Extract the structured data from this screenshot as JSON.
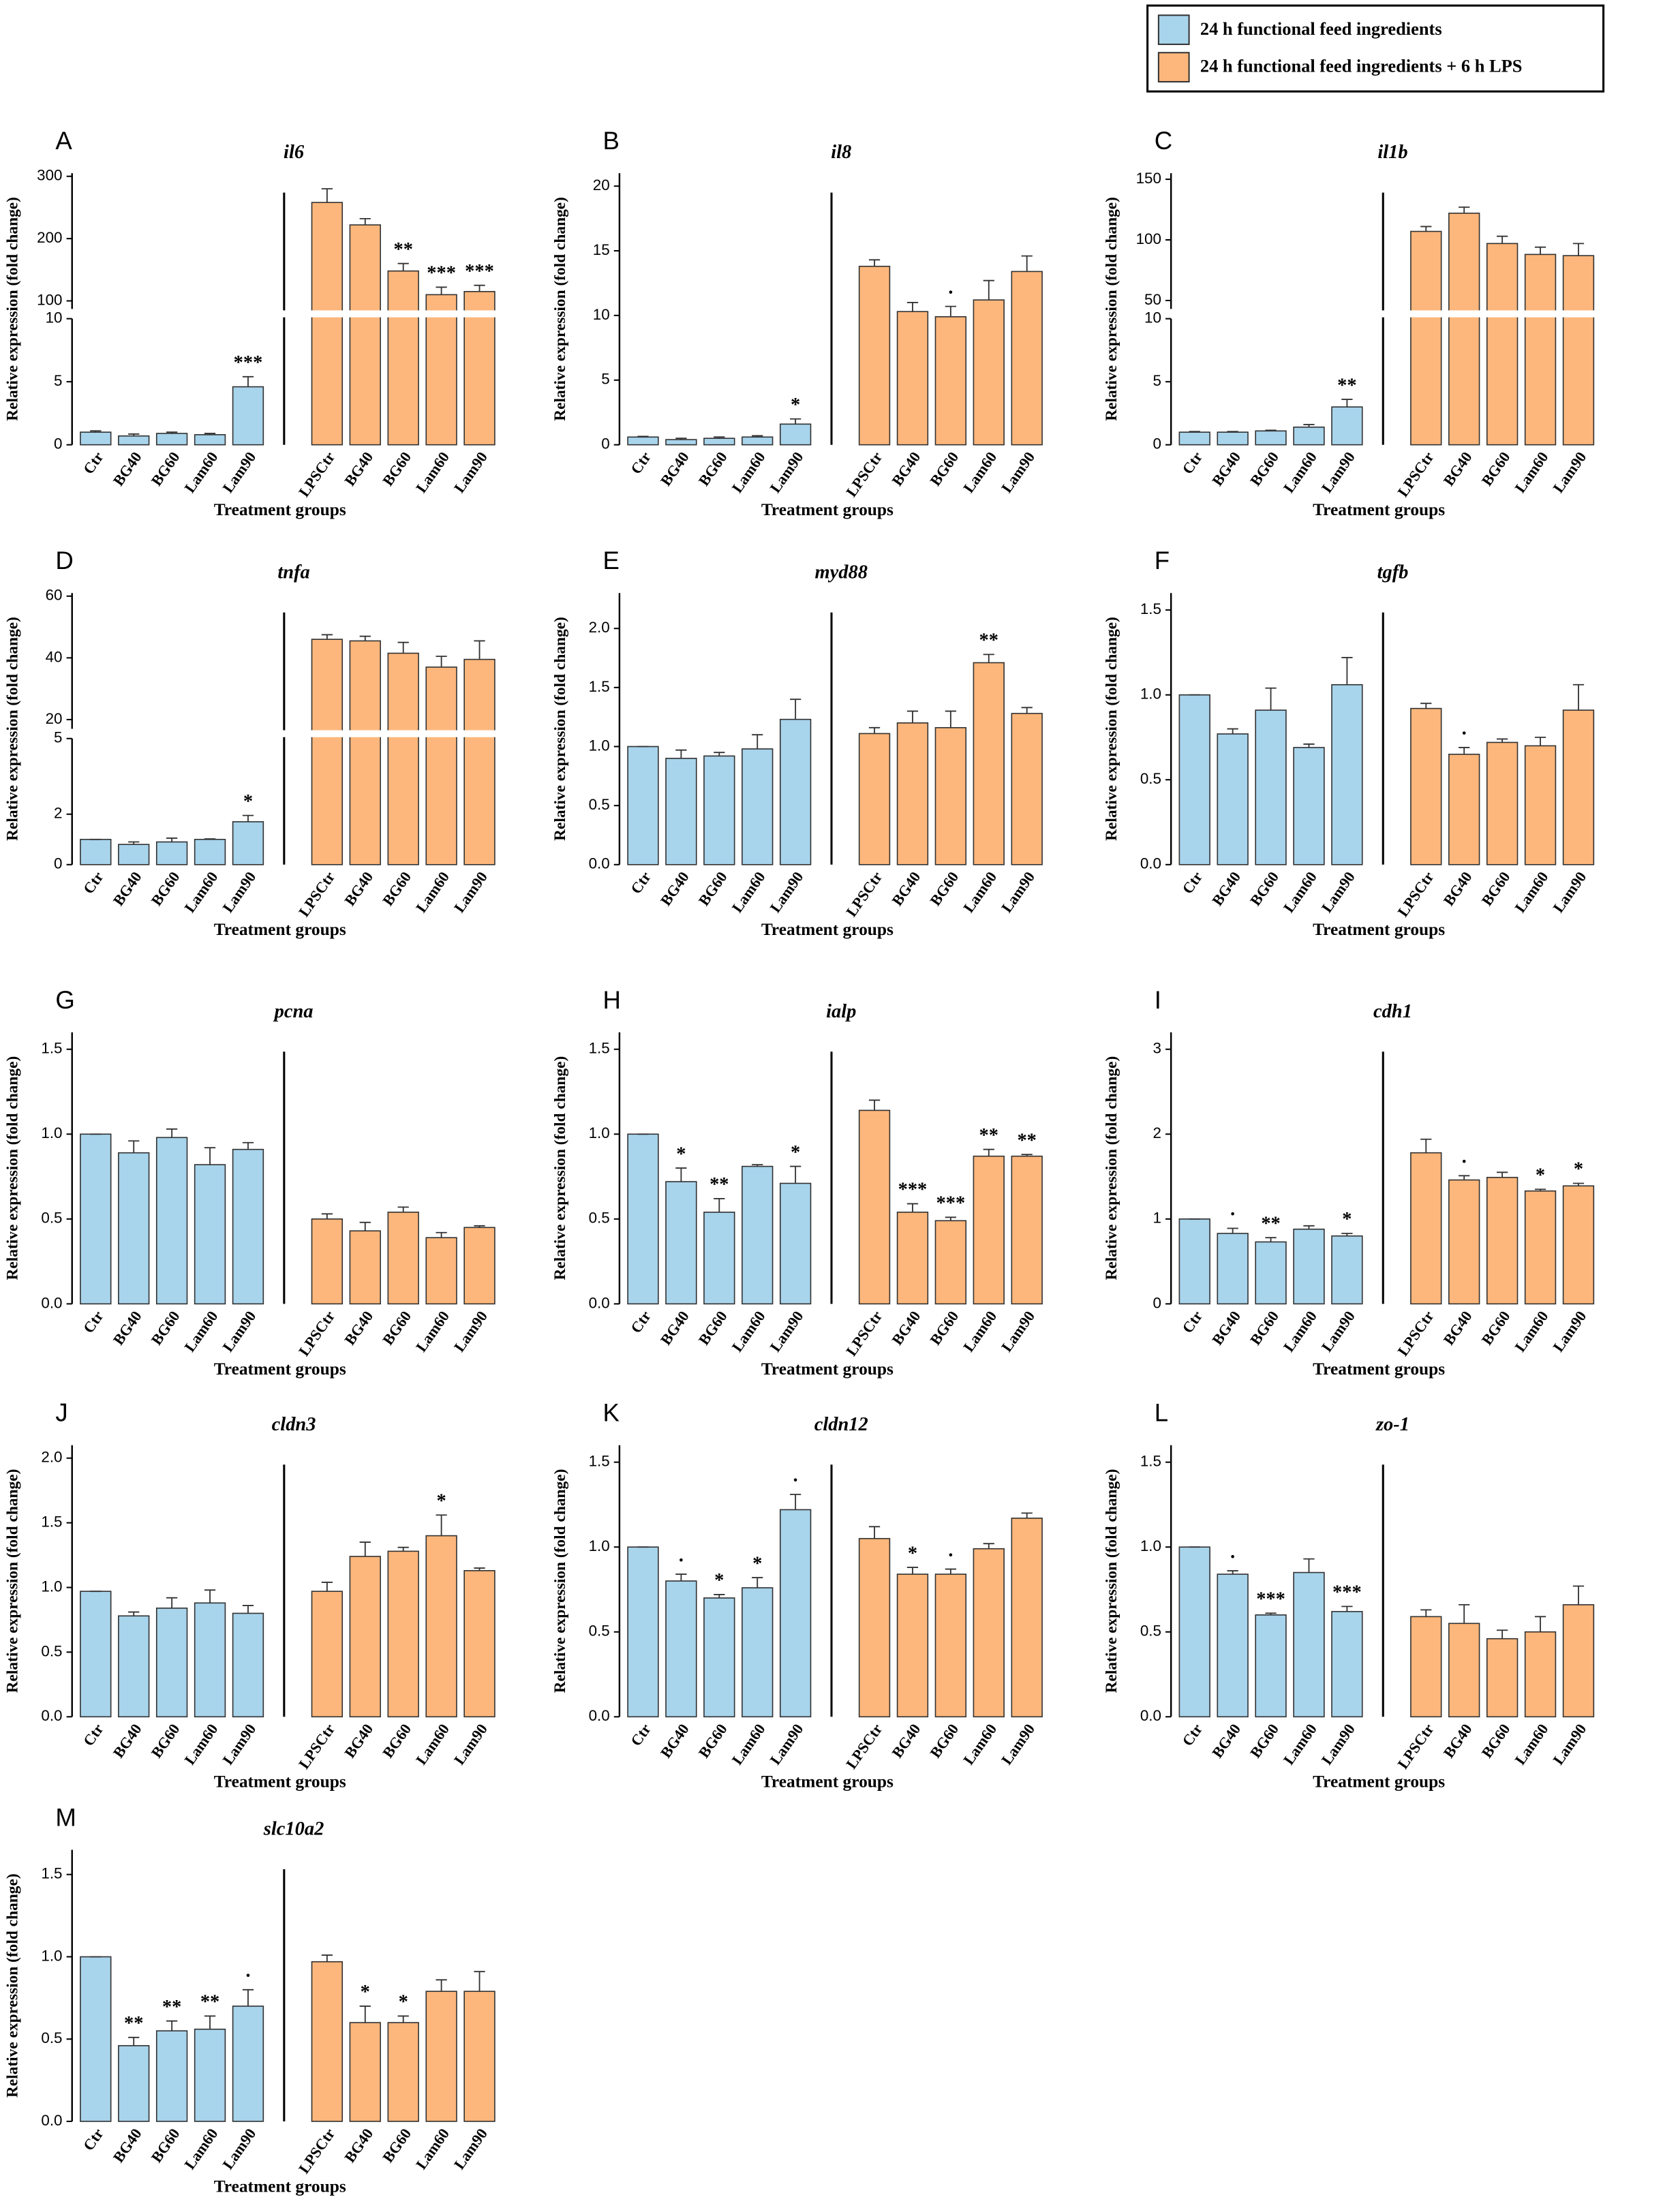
{
  "legend": [
    {
      "name": "24 h functional feed ingredients",
      "color": "#a8d4ec"
    },
    {
      "name": "24 h functional feed ingredients + 6 h LPS",
      "color": "#fdb77c"
    }
  ],
  "chart_data": [
    {
      "type": "bar",
      "panel": "A",
      "title": "il6",
      "ylabel": "Relative expression (fold change)",
      "xlabel": "Treatment groups",
      "ylim": [
        0,
        10
      ],
      "yticks": [
        0,
        5,
        10
      ],
      "ylim_upper": [
        87,
        305
      ],
      "yticks_upper": [
        100,
        200,
        300
      ],
      "groups": [
        {
          "categories": [
            "Ctr",
            "BG40",
            "BG60",
            "Lam60",
            "Lam90"
          ],
          "values": [
            1.0,
            0.7,
            0.9,
            0.8,
            4.6
          ],
          "errors": [
            0.1,
            0.15,
            0.1,
            0.1,
            0.8
          ],
          "annotations": [
            null,
            null,
            null,
            null,
            "***"
          ]
        },
        {
          "categories": [
            "LPSCtr",
            "BG40",
            "BG60",
            "Lam60",
            "Lam90"
          ],
          "values": [
            258,
            222,
            148,
            110,
            115
          ],
          "errors": [
            22,
            10,
            12,
            12,
            10
          ],
          "annotations": [
            null,
            null,
            "**",
            "***",
            "***"
          ]
        }
      ]
    },
    {
      "type": "bar",
      "panel": "B",
      "title": "il8",
      "ylabel": "Relative expression (fold change)",
      "xlabel": "Treatment groups",
      "ylim": [
        0,
        21
      ],
      "yticks": [
        0,
        5,
        10,
        15,
        20
      ],
      "groups": [
        {
          "categories": [
            "Ctr",
            "BG40",
            "BG60",
            "Lam60",
            "Lam90"
          ],
          "values": [
            0.6,
            0.4,
            0.5,
            0.6,
            1.6
          ],
          "errors": [
            0.05,
            0.1,
            0.1,
            0.1,
            0.4
          ],
          "annotations": [
            null,
            null,
            null,
            null,
            "*"
          ]
        },
        {
          "categories": [
            "LPSCtr",
            "BG40",
            "BG60",
            "Lam60",
            "Lam90"
          ],
          "values": [
            13.8,
            10.3,
            9.9,
            11.2,
            13.4
          ],
          "errors": [
            0.5,
            0.7,
            0.8,
            1.5,
            1.2
          ],
          "annotations": [
            null,
            null,
            "·",
            null,
            null
          ]
        }
      ]
    },
    {
      "type": "bar",
      "panel": "C",
      "title": "il1b",
      "ylabel": "Relative expression (fold change)",
      "xlabel": "Treatment groups",
      "ylim": [
        0,
        10
      ],
      "yticks": [
        0,
        5,
        10
      ],
      "ylim_upper": [
        43,
        155
      ],
      "yticks_upper": [
        50,
        100,
        150
      ],
      "groups": [
        {
          "categories": [
            "Ctr",
            "BG40",
            "BG60",
            "Lam60",
            "Lam90"
          ],
          "values": [
            1.0,
            1.0,
            1.1,
            1.4,
            3.0
          ],
          "errors": [
            0.05,
            0.05,
            0.05,
            0.2,
            0.6
          ],
          "annotations": [
            null,
            null,
            null,
            null,
            "**"
          ]
        },
        {
          "categories": [
            "LPSCtr",
            "BG40",
            "BG60",
            "Lam60",
            "Lam90"
          ],
          "values": [
            107,
            122,
            97,
            88,
            87
          ],
          "errors": [
            4,
            5,
            6,
            6,
            10
          ],
          "annotations": [
            null,
            null,
            null,
            null,
            null
          ]
        }
      ]
    },
    {
      "type": "bar",
      "panel": "D",
      "title": "tnfa",
      "ylabel": "Relative expression (fold change)",
      "xlabel": "Treatment groups",
      "ylim": [
        0,
        5
      ],
      "yticks": [
        0,
        2,
        5
      ],
      "ylim_upper": [
        17,
        61
      ],
      "yticks_upper": [
        20,
        40,
        60
      ],
      "groups": [
        {
          "categories": [
            "Ctr",
            "BG40",
            "BG60",
            "Lam60",
            "Lam90"
          ],
          "values": [
            1.0,
            0.8,
            0.9,
            1.0,
            1.7
          ],
          "errors": [
            0,
            0.1,
            0.15,
            0.02,
            0.25
          ],
          "annotations": [
            null,
            null,
            null,
            null,
            "*"
          ]
        },
        {
          "categories": [
            "LPSCtr",
            "BG40",
            "BG60",
            "Lam60",
            "Lam90"
          ],
          "values": [
            46,
            45.5,
            41.5,
            37,
            39.5
          ],
          "errors": [
            1.5,
            1.5,
            3.5,
            3.5,
            6
          ],
          "annotations": [
            null,
            null,
            null,
            null,
            null
          ]
        }
      ]
    },
    {
      "type": "bar",
      "panel": "E",
      "title": "myd88",
      "ylabel": "Relative expression (fold change)",
      "xlabel": "Treatment groups",
      "ylim": [
        0,
        2.3
      ],
      "yticks": [
        {
          "value": 0,
          "label": "0.0"
        },
        0.5,
        {
          "value": 1,
          "label": "1.0"
        },
        1.5,
        {
          "value": 2,
          "label": "2.0"
        }
      ],
      "groups": [
        {
          "categories": [
            "Ctr",
            "BG40",
            "BG60",
            "Lam60",
            "Lam90"
          ],
          "values": [
            1.0,
            0.9,
            0.92,
            0.98,
            1.23
          ],
          "errors": [
            0,
            0.07,
            0.03,
            0.12,
            0.17
          ],
          "annotations": [
            null,
            null,
            null,
            null,
            null
          ]
        },
        {
          "categories": [
            "LPSCtr",
            "BG40",
            "BG60",
            "Lam60",
            "Lam90"
          ],
          "values": [
            1.11,
            1.2,
            1.16,
            1.71,
            1.28
          ],
          "errors": [
            0.05,
            0.1,
            0.14,
            0.07,
            0.05
          ],
          "annotations": [
            null,
            null,
            null,
            "**",
            null
          ]
        }
      ]
    },
    {
      "type": "bar",
      "panel": "F",
      "title": "tgfb",
      "ylabel": "Relative expression (fold change)",
      "xlabel": "Treatment groups",
      "ylim": [
        0,
        1.6
      ],
      "yticks": [
        {
          "value": 0,
          "label": "0.0"
        },
        0.5,
        {
          "value": 1,
          "label": "1.0"
        },
        1.5
      ],
      "groups": [
        {
          "categories": [
            "Ctr",
            "BG40",
            "BG60",
            "Lam60",
            "Lam90"
          ],
          "values": [
            1.0,
            0.77,
            0.91,
            0.69,
            1.06
          ],
          "errors": [
            0,
            0.03,
            0.13,
            0.02,
            0.16
          ],
          "annotations": [
            null,
            null,
            null,
            null,
            null
          ]
        },
        {
          "categories": [
            "LPSCtr",
            "BG40",
            "BG60",
            "Lam60",
            "Lam90"
          ],
          "values": [
            0.92,
            0.65,
            0.72,
            0.7,
            0.91
          ],
          "errors": [
            0.03,
            0.04,
            0.02,
            0.05,
            0.15
          ],
          "annotations": [
            null,
            "·",
            null,
            null,
            null
          ]
        }
      ]
    },
    {
      "type": "bar",
      "panel": "G",
      "title": "pcna",
      "ylabel": "Relative expression (fold change)",
      "xlabel": "Treatment groups",
      "ylim": [
        0,
        1.6
      ],
      "yticks": [
        {
          "value": 0,
          "label": "0.0"
        },
        0.5,
        {
          "value": 1,
          "label": "1.0"
        },
        1.5
      ],
      "groups": [
        {
          "categories": [
            "Ctr",
            "BG40",
            "BG60",
            "Lam60",
            "Lam90"
          ],
          "values": [
            1.0,
            0.89,
            0.98,
            0.82,
            0.91
          ],
          "errors": [
            0,
            0.07,
            0.05,
            0.1,
            0.04
          ],
          "annotations": [
            null,
            null,
            null,
            null,
            null
          ]
        },
        {
          "categories": [
            "LPSCtr",
            "BG40",
            "BG60",
            "Lam60",
            "Lam90"
          ],
          "values": [
            0.5,
            0.43,
            0.54,
            0.39,
            0.45
          ],
          "errors": [
            0.03,
            0.05,
            0.03,
            0.03,
            0.01
          ],
          "annotations": [
            null,
            null,
            null,
            null,
            null
          ]
        }
      ]
    },
    {
      "type": "bar",
      "panel": "H",
      "title": "ialp",
      "ylabel": "Relative expression (fold change)",
      "xlabel": "Treatment groups",
      "ylim": [
        0,
        1.6
      ],
      "yticks": [
        {
          "value": 0,
          "label": "0.0"
        },
        0.5,
        {
          "value": 1,
          "label": "1.0"
        },
        1.5
      ],
      "groups": [
        {
          "categories": [
            "Ctr",
            "BG40",
            "BG60",
            "Lam60",
            "Lam90"
          ],
          "values": [
            1.0,
            0.72,
            0.54,
            0.81,
            0.71
          ],
          "errors": [
            0,
            0.08,
            0.08,
            0.01,
            0.1
          ],
          "annotations": [
            null,
            "*",
            "**",
            null,
            "*"
          ]
        },
        {
          "categories": [
            "LPSCtr",
            "BG40",
            "BG60",
            "Lam60",
            "Lam90"
          ],
          "values": [
            1.14,
            0.54,
            0.49,
            0.87,
            0.87
          ],
          "errors": [
            0.06,
            0.05,
            0.02,
            0.04,
            0.01
          ],
          "annotations": [
            null,
            "***",
            "***",
            "**",
            "**"
          ]
        }
      ]
    },
    {
      "type": "bar",
      "panel": "I",
      "title": "cdh1",
      "ylabel": "Relative expression (fold change)",
      "xlabel": "Treatment groups",
      "ylim": [
        0,
        3.2
      ],
      "yticks": [
        0,
        1,
        2,
        3
      ],
      "groups": [
        {
          "categories": [
            "Ctr",
            "BG40",
            "BG60",
            "Lam60",
            "Lam90"
          ],
          "values": [
            1.0,
            0.83,
            0.73,
            0.88,
            0.8
          ],
          "errors": [
            0,
            0.06,
            0.05,
            0.04,
            0.03
          ],
          "annotations": [
            null,
            "·",
            "**",
            null,
            "*"
          ]
        },
        {
          "categories": [
            "LPSCtr",
            "BG40",
            "BG60",
            "Lam60",
            "Lam90"
          ],
          "values": [
            1.78,
            1.46,
            1.49,
            1.33,
            1.39
          ],
          "errors": [
            0.16,
            0.05,
            0.06,
            0.02,
            0.03
          ],
          "annotations": [
            null,
            "·",
            null,
            "*",
            "*"
          ]
        }
      ]
    },
    {
      "type": "bar",
      "panel": "J",
      "title": "cldn3",
      "ylabel": "Relative expression (fold change)",
      "xlabel": "Treatment groups",
      "ylim": [
        0,
        2.1
      ],
      "yticks": [
        {
          "value": 0,
          "label": "0.0"
        },
        0.5,
        {
          "value": 1,
          "label": "1.0"
        },
        1.5,
        {
          "value": 2,
          "label": "2.0"
        }
      ],
      "groups": [
        {
          "categories": [
            "Ctr",
            "BG40",
            "BG60",
            "Lam60",
            "Lam90"
          ],
          "values": [
            0.97,
            0.78,
            0.84,
            0.88,
            0.8
          ],
          "errors": [
            0,
            0.03,
            0.08,
            0.1,
            0.06
          ],
          "annotations": [
            null,
            null,
            null,
            null,
            null
          ]
        },
        {
          "categories": [
            "LPSCtr",
            "BG40",
            "BG60",
            "Lam60",
            "Lam90"
          ],
          "values": [
            0.97,
            1.24,
            1.28,
            1.4,
            1.13
          ],
          "errors": [
            0.07,
            0.11,
            0.03,
            0.16,
            0.02
          ],
          "annotations": [
            null,
            null,
            null,
            "*",
            null
          ]
        }
      ]
    },
    {
      "type": "bar",
      "panel": "K",
      "title": "cldn12",
      "ylabel": "Relative expression (fold change)",
      "xlabel": "Treatment groups",
      "ylim": [
        0,
        1.6
      ],
      "yticks": [
        {
          "value": 0,
          "label": "0.0"
        },
        0.5,
        {
          "value": 1,
          "label": "1.0"
        },
        1.5
      ],
      "groups": [
        {
          "categories": [
            "Ctr",
            "BG40",
            "BG60",
            "Lam60",
            "Lam90"
          ],
          "values": [
            1.0,
            0.8,
            0.7,
            0.76,
            1.22
          ],
          "errors": [
            0,
            0.04,
            0.02,
            0.06,
            0.09
          ],
          "annotations": [
            null,
            "·",
            "*",
            "*",
            "·"
          ]
        },
        {
          "categories": [
            "LPSCtr",
            "BG40",
            "BG60",
            "Lam60",
            "Lam90"
          ],
          "values": [
            1.05,
            0.84,
            0.84,
            0.99,
            1.17
          ],
          "errors": [
            0.07,
            0.04,
            0.03,
            0.03,
            0.03
          ],
          "annotations": [
            null,
            "*",
            "·",
            null,
            null
          ]
        }
      ]
    },
    {
      "type": "bar",
      "panel": "L",
      "title": "zo-1",
      "ylabel": "Relative expression (fold change)",
      "xlabel": "Treatment groups",
      "ylim": [
        0,
        1.6
      ],
      "yticks": [
        {
          "value": 0,
          "label": "0.0"
        },
        0.5,
        {
          "value": 1,
          "label": "1.0"
        },
        1.5
      ],
      "groups": [
        {
          "categories": [
            "Ctr",
            "BG40",
            "BG60",
            "Lam60",
            "Lam90"
          ],
          "values": [
            1.0,
            0.84,
            0.6,
            0.85,
            0.62
          ],
          "errors": [
            0,
            0.02,
            0.01,
            0.08,
            0.03
          ],
          "annotations": [
            null,
            "·",
            "***",
            null,
            "***"
          ]
        },
        {
          "categories": [
            "LPSCtr",
            "BG40",
            "BG60",
            "Lam60",
            "Lam90"
          ],
          "values": [
            0.59,
            0.55,
            0.46,
            0.5,
            0.66
          ],
          "errors": [
            0.04,
            0.11,
            0.05,
            0.09,
            0.11
          ],
          "annotations": [
            null,
            null,
            null,
            null,
            null
          ]
        }
      ]
    },
    {
      "type": "bar",
      "panel": "M",
      "title": "slc10a2",
      "ylabel": "Relative expression (fold change)",
      "xlabel": "Treatment groups",
      "ylim": [
        0,
        1.65
      ],
      "yticks": [
        {
          "value": 0,
          "label": "0.0"
        },
        0.5,
        {
          "value": 1,
          "label": "1.0"
        },
        1.5
      ],
      "groups": [
        {
          "categories": [
            "Ctr",
            "BG40",
            "BG60",
            "Lam60",
            "Lam90"
          ],
          "values": [
            1.0,
            0.46,
            0.55,
            0.56,
            0.7
          ],
          "errors": [
            0,
            0.05,
            0.06,
            0.08,
            0.1
          ],
          "annotations": [
            null,
            "**",
            "**",
            "**",
            "·"
          ]
        },
        {
          "categories": [
            "LPSCtr",
            "BG40",
            "BG60",
            "Lam60",
            "Lam90"
          ],
          "values": [
            0.97,
            0.6,
            0.6,
            0.79,
            0.79
          ],
          "errors": [
            0.04,
            0.1,
            0.04,
            0.07,
            0.12
          ],
          "annotations": [
            null,
            "*",
            "*",
            null,
            null
          ]
        }
      ]
    }
  ]
}
